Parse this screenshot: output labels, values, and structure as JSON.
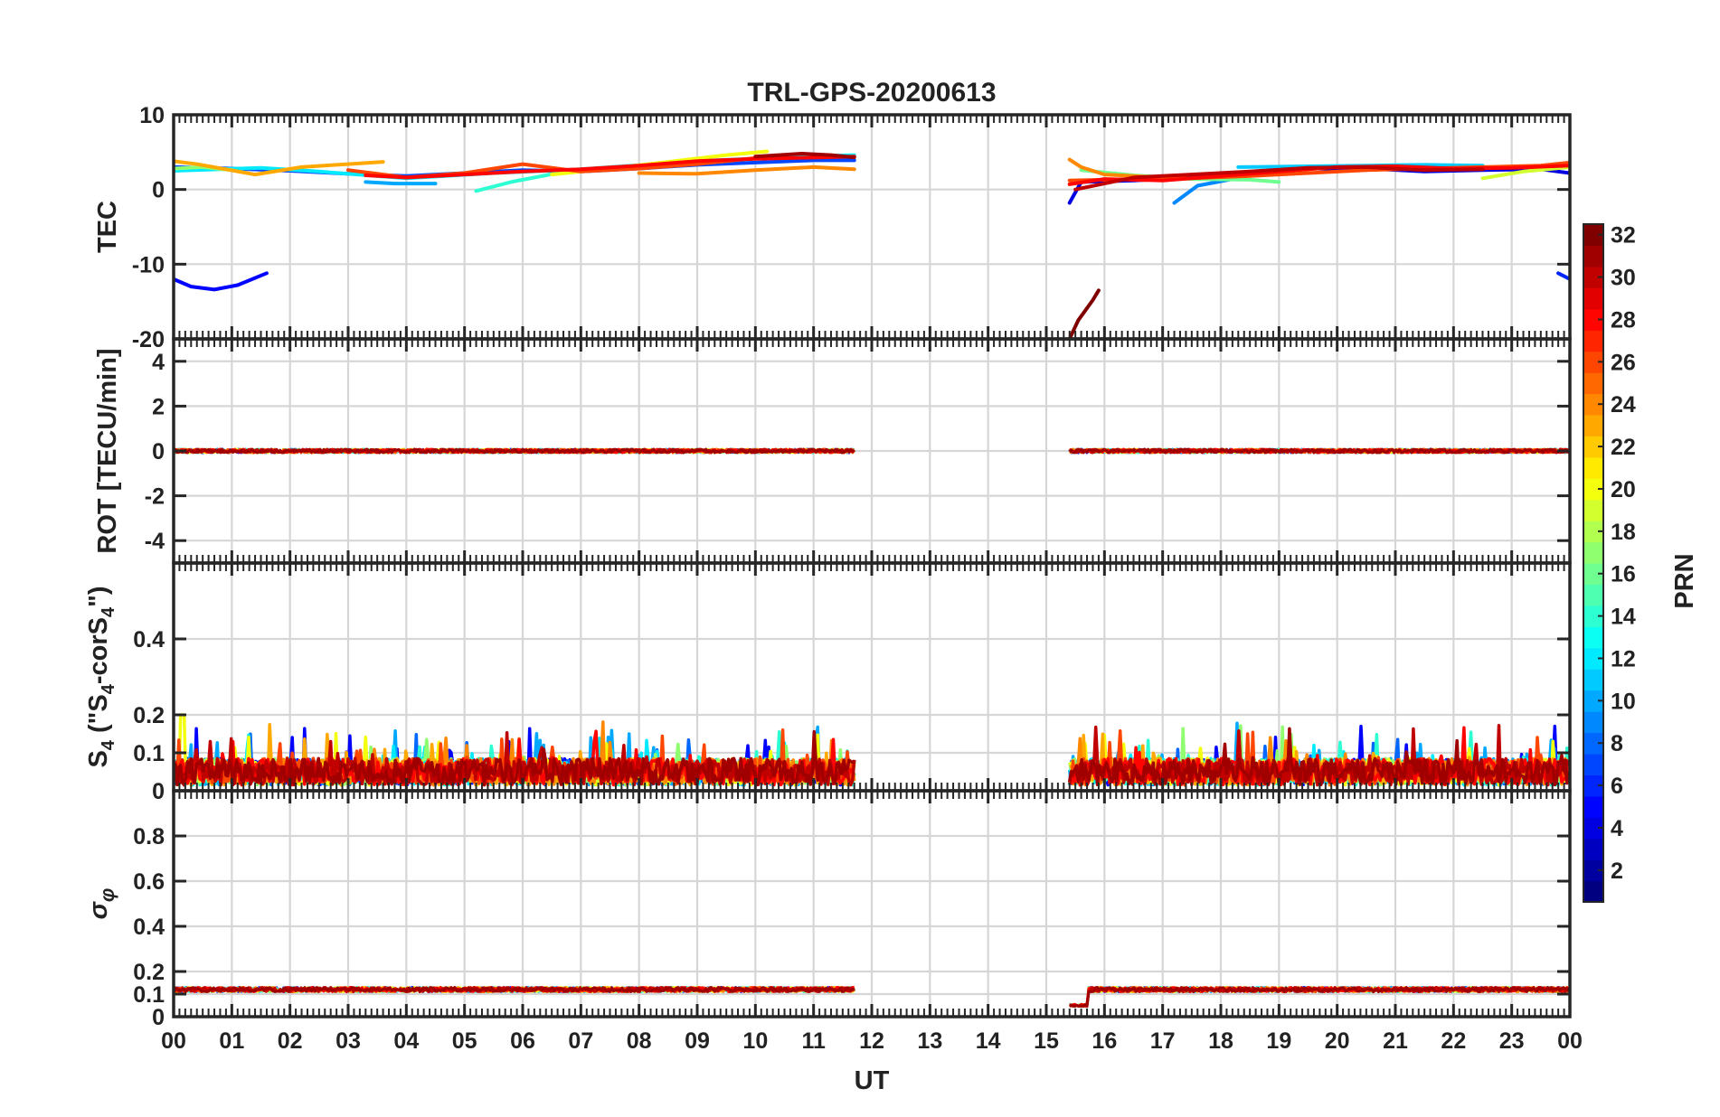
{
  "chart_data": {
    "type": "line",
    "title": "TRL-GPS-20200613",
    "xlabel": "UT",
    "x_tick_labels": [
      "00",
      "01",
      "02",
      "03",
      "04",
      "05",
      "06",
      "07",
      "08",
      "09",
      "10",
      "11",
      "12",
      "13",
      "14",
      "15",
      "16",
      "17",
      "18",
      "19",
      "20",
      "21",
      "22",
      "23",
      "00"
    ],
    "xlim": [
      0,
      24
    ],
    "data_gaps_hours": [
      [
        11.7,
        15.4
      ]
    ],
    "panels": [
      {
        "id": "tec",
        "ylabel": "TEC",
        "ylim": [
          -20,
          10
        ],
        "yticks": [
          {
            "value": 10,
            "label": "10"
          },
          {
            "value": 0,
            "label": "0"
          },
          {
            "value": -10,
            "label": "-10"
          },
          {
            "value": -20,
            "label": "-20"
          }
        ],
        "series": [
          {
            "prn": 5,
            "points": [
              [
                0.0,
                -12.0
              ],
              [
                0.3,
                -13.0
              ],
              [
                0.7,
                -13.4
              ],
              [
                1.1,
                -12.8
              ],
              [
                1.6,
                -11.2
              ]
            ]
          },
          {
            "prn": 7,
            "points": [
              [
                0.0,
                3.0
              ],
              [
                1.0,
                2.8
              ],
              [
                2.0,
                2.5
              ],
              [
                3.0,
                2.1
              ],
              [
                4.0,
                1.8
              ],
              [
                5.0,
                2.2
              ],
              [
                6.0,
                2.6
              ],
              [
                7.0,
                2.4
              ],
              [
                8.0,
                2.8
              ],
              [
                9.0,
                3.3
              ],
              [
                10.0,
                3.6
              ],
              [
                11.0,
                3.9
              ],
              [
                11.7,
                3.9
              ]
            ]
          },
          {
            "prn": 10,
            "points": [
              [
                3.3,
                1.0
              ],
              [
                3.8,
                0.8
              ],
              [
                4.5,
                0.8
              ]
            ]
          },
          {
            "prn": 12,
            "points": [
              [
                0.0,
                2.5
              ],
              [
                1.5,
                2.9
              ],
              [
                2.5,
                2.4
              ],
              [
                4.0,
                1.5
              ],
              [
                5.5,
                2.2
              ],
              [
                7.0,
                2.7
              ],
              [
                9.0,
                3.8
              ],
              [
                10.5,
                4.3
              ],
              [
                11.7,
                4.6
              ]
            ]
          },
          {
            "prn": 14,
            "points": [
              [
                5.2,
                -0.2
              ],
              [
                5.8,
                1.0
              ],
              [
                6.6,
                2.2
              ],
              [
                7.2,
                2.6
              ]
            ]
          },
          {
            "prn": 17,
            "points": [
              [
                0.0,
                2.8
              ],
              [
                0.5,
                3.0
              ],
              [
                1.0,
                2.6
              ]
            ]
          },
          {
            "prn": 20,
            "points": [
              [
                6.5,
                2.0
              ],
              [
                7.5,
                2.8
              ],
              [
                8.5,
                3.7
              ],
              [
                9.5,
                4.6
              ],
              [
                10.2,
                5.1
              ]
            ]
          },
          {
            "prn": 23,
            "points": [
              [
                0.0,
                3.8
              ],
              [
                0.4,
                3.4
              ],
              [
                1.4,
                2.0
              ],
              [
                2.2,
                3.0
              ],
              [
                3.6,
                3.7
              ]
            ]
          },
          {
            "prn": 24,
            "points": [
              [
                8.0,
                2.2
              ],
              [
                9.0,
                2.1
              ],
              [
                10.0,
                2.6
              ],
              [
                11.0,
                3.0
              ],
              [
                11.7,
                2.7
              ]
            ]
          },
          {
            "prn": 26,
            "points": [
              [
                3.0,
                2.6
              ],
              [
                4.0,
                1.6
              ],
              [
                5.0,
                2.2
              ],
              [
                6.0,
                3.4
              ],
              [
                7.0,
                2.4
              ],
              [
                8.0,
                2.8
              ],
              [
                9.0,
                3.4
              ],
              [
                10.0,
                4.2
              ]
            ]
          },
          {
            "prn": 28,
            "points": [
              [
                3.3,
                1.9
              ],
              [
                4.0,
                1.6
              ],
              [
                5.0,
                2.0
              ],
              [
                6.0,
                2.4
              ],
              [
                7.0,
                2.7
              ],
              [
                8.0,
                3.2
              ],
              [
                9.0,
                3.8
              ],
              [
                10.0,
                4.1
              ],
              [
                11.7,
                4.4
              ]
            ]
          },
          {
            "prn": 31,
            "points": [
              [
                10.0,
                4.4
              ],
              [
                10.8,
                4.8
              ],
              [
                11.3,
                4.6
              ],
              [
                11.7,
                4.3
              ]
            ]
          },
          {
            "prn": 32,
            "points": [
              [
                15.4,
                -20.0
              ],
              [
                15.55,
                -17.5
              ],
              [
                15.8,
                -14.8
              ],
              [
                15.9,
                -13.5
              ]
            ]
          },
          {
            "prn": 4,
            "points": [
              [
                15.4,
                -1.8
              ],
              [
                15.6,
                1.0
              ],
              [
                16.5,
                1.2
              ],
              [
                17.5,
                1.6
              ],
              [
                18.5,
                2.2
              ],
              [
                19.5,
                2.8
              ],
              [
                20.5,
                2.8
              ],
              [
                21.5,
                2.4
              ],
              [
                22.5,
                2.6
              ],
              [
                23.5,
                2.7
              ],
              [
                24.0,
                2.2
              ]
            ]
          },
          {
            "prn": 6,
            "points": [
              [
                23.8,
                -11.2
              ],
              [
                24.0,
                -12.0
              ]
            ]
          },
          {
            "prn": 9,
            "points": [
              [
                17.2,
                -1.8
              ],
              [
                17.6,
                0.5
              ],
              [
                18.2,
                1.4
              ]
            ]
          },
          {
            "prn": 11,
            "points": [
              [
                18.3,
                3.0
              ],
              [
                19.5,
                3.1
              ],
              [
                20.5,
                3.2
              ],
              [
                21.5,
                3.3
              ],
              [
                22.5,
                3.2
              ]
            ]
          },
          {
            "prn": 16,
            "points": [
              [
                15.6,
                2.6
              ],
              [
                16.5,
                1.9
              ],
              [
                17.5,
                1.4
              ],
              [
                18.5,
                1.3
              ],
              [
                19.0,
                1.0
              ]
            ]
          },
          {
            "prn": 19,
            "points": [
              [
                22.5,
                1.5
              ],
              [
                23.2,
                2.4
              ],
              [
                24.0,
                3.0
              ]
            ]
          },
          {
            "prn": 24,
            "points": [
              [
                15.4,
                4.0
              ],
              [
                15.6,
                3.0
              ],
              [
                16.0,
                2.0
              ],
              [
                17.0,
                1.6
              ]
            ]
          },
          {
            "prn": 26,
            "points": [
              [
                15.4,
                1.2
              ],
              [
                16.5,
                1.4
              ],
              [
                17.5,
                1.5
              ],
              [
                18.5,
                1.8
              ],
              [
                19.5,
                2.2
              ],
              [
                20.5,
                2.6
              ],
              [
                21.5,
                2.8
              ],
              [
                22.5,
                3.0
              ],
              [
                23.5,
                3.2
              ],
              [
                24.0,
                3.6
              ]
            ]
          },
          {
            "prn": 28,
            "points": [
              [
                15.4,
                0.7
              ],
              [
                16.0,
                1.4
              ],
              [
                17.0,
                1.2
              ],
              [
                18.0,
                1.8
              ],
              [
                19.0,
                2.4
              ],
              [
                20.0,
                3.0
              ],
              [
                21.0,
                3.1
              ],
              [
                22.0,
                2.8
              ],
              [
                23.0,
                2.9
              ],
              [
                24.0,
                3.2
              ]
            ]
          },
          {
            "prn": 30,
            "points": [
              [
                15.5,
                0.0
              ],
              [
                16.5,
                1.6
              ],
              [
                17.5,
                2.0
              ],
              [
                18.5,
                2.4
              ],
              [
                19.5,
                2.9
              ],
              [
                20.5,
                3.0
              ],
              [
                21.5,
                2.6
              ],
              [
                22.5,
                2.7
              ]
            ]
          }
        ]
      },
      {
        "id": "rot",
        "ylabel": "ROT [TECU/min]",
        "ylim": [
          -5,
          5
        ],
        "yticks": [
          {
            "value": 4,
            "label": "4"
          },
          {
            "value": 2,
            "label": "2"
          },
          {
            "value": 0,
            "label": "0"
          },
          {
            "value": -2,
            "label": "-2"
          },
          {
            "value": -4,
            "label": "-4"
          }
        ],
        "typical_value": 0.0,
        "noise_amplitude": 0.08
      },
      {
        "id": "s4",
        "ylabel": "S4 (\"S4-corS4\")",
        "ylim": [
          0,
          0.6
        ],
        "yticks": [
          {
            "value": 0.4,
            "label": "0.4"
          },
          {
            "value": 0.2,
            "label": "0.2"
          },
          {
            "value": 0.1,
            "label": "0.1"
          },
          {
            "value": 0,
            "label": "0"
          }
        ],
        "typical_value": 0.05,
        "peak_value": 0.2,
        "peak_at_hour": 0.15
      },
      {
        "id": "sigma",
        "ylabel": "σ φ",
        "ylim": [
          0,
          1
        ],
        "yticks": [
          {
            "value": 0.8,
            "label": "0.8"
          },
          {
            "value": 0.6,
            "label": "0.6"
          },
          {
            "value": 0.4,
            "label": "0.4"
          },
          {
            "value": 0.2,
            "label": "0.2"
          },
          {
            "value": 0.1,
            "label": "0.1"
          },
          {
            "value": 0,
            "label": "0"
          }
        ],
        "typical_value": 0.12,
        "dip": {
          "start_hour": 15.4,
          "end_hour": 15.7,
          "value": 0.05
        }
      }
    ],
    "colorbar": {
      "label": "PRN",
      "min": 1,
      "max": 32,
      "tick_labels": [
        2,
        4,
        6,
        8,
        10,
        12,
        14,
        16,
        18,
        20,
        22,
        24,
        26,
        28,
        30,
        32
      ],
      "colormap": "jet"
    }
  }
}
